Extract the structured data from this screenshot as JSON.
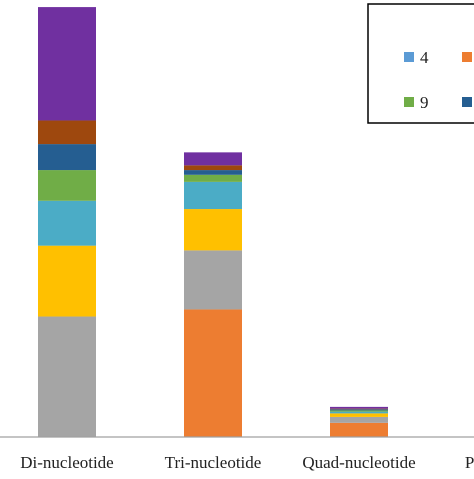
{
  "chart_data": {
    "type": "bar",
    "stacked": true,
    "categories": [
      "Di-nucleotide",
      "Tri-nucleotide",
      "Quad-nucleotide",
      "Pent"
    ],
    "grid": false,
    "legend_position": "top-right",
    "series": [
      {
        "name": "",
        "color": "#ED7D31",
        "values": [
          0,
          108,
          12,
          0
        ]
      },
      {
        "name": "",
        "color": "#A5A5A5",
        "values": [
          102,
          50,
          5,
          0
        ]
      },
      {
        "name": "",
        "color": "#FFC000",
        "values": [
          60,
          35,
          3,
          0
        ]
      },
      {
        "name": "4",
        "color": "#5B9BD5",
        "values": [
          0,
          0,
          0,
          0
        ]
      },
      {
        "name": "",
        "color": "#4BACC6",
        "values": [
          38,
          23,
          1.5,
          0
        ]
      },
      {
        "name": "9",
        "color": "#70AD47",
        "values": [
          26,
          6,
          1,
          0
        ]
      },
      {
        "name": "",
        "color": "#255E91",
        "values": [
          22,
          4,
          1,
          0
        ]
      },
      {
        "name": "",
        "color": "#9E480E",
        "values": [
          20,
          4,
          0.5,
          0
        ]
      },
      {
        "name": "",
        "color": "#7030A0",
        "values": [
          96,
          11,
          1.5,
          0
        ]
      }
    ],
    "legend_entries": [
      {
        "label": "4",
        "color": "#5B9BD5"
      },
      {
        "label": "",
        "color": "#ED7D31"
      },
      {
        "label": "9",
        "color": "#70AD47"
      },
      {
        "label": "",
        "color": "#255E91"
      }
    ],
    "ylim": [
      0,
      370
    ]
  }
}
